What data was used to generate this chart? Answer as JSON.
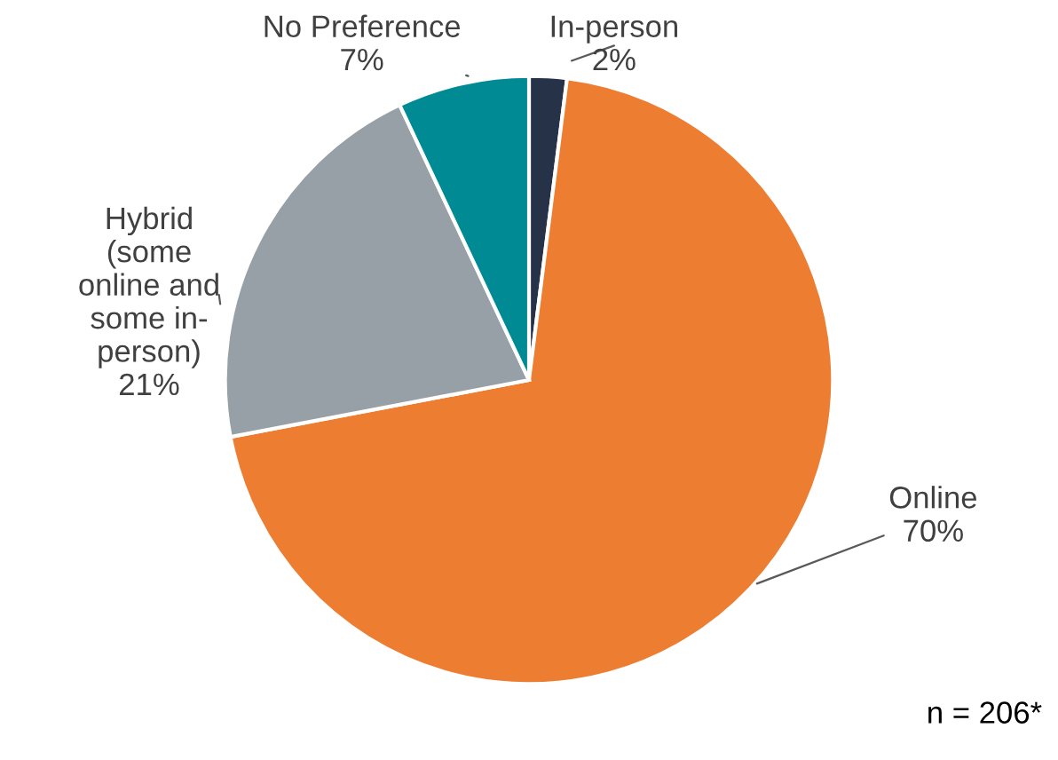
{
  "chart_data": {
    "type": "pie",
    "categories": [
      "In-person",
      "Online",
      "Hybrid\n(some\nonline and\nsome in-\nperson)",
      "No Preference"
    ],
    "values": [
      2,
      70,
      21,
      7
    ],
    "value_labels": [
      "2%",
      "70%",
      "21%",
      "7%"
    ],
    "colors": [
      "#263248",
      "#ed7d31",
      "#97a0a7",
      "#008b94"
    ],
    "annotations": [
      "n = 206*"
    ]
  }
}
